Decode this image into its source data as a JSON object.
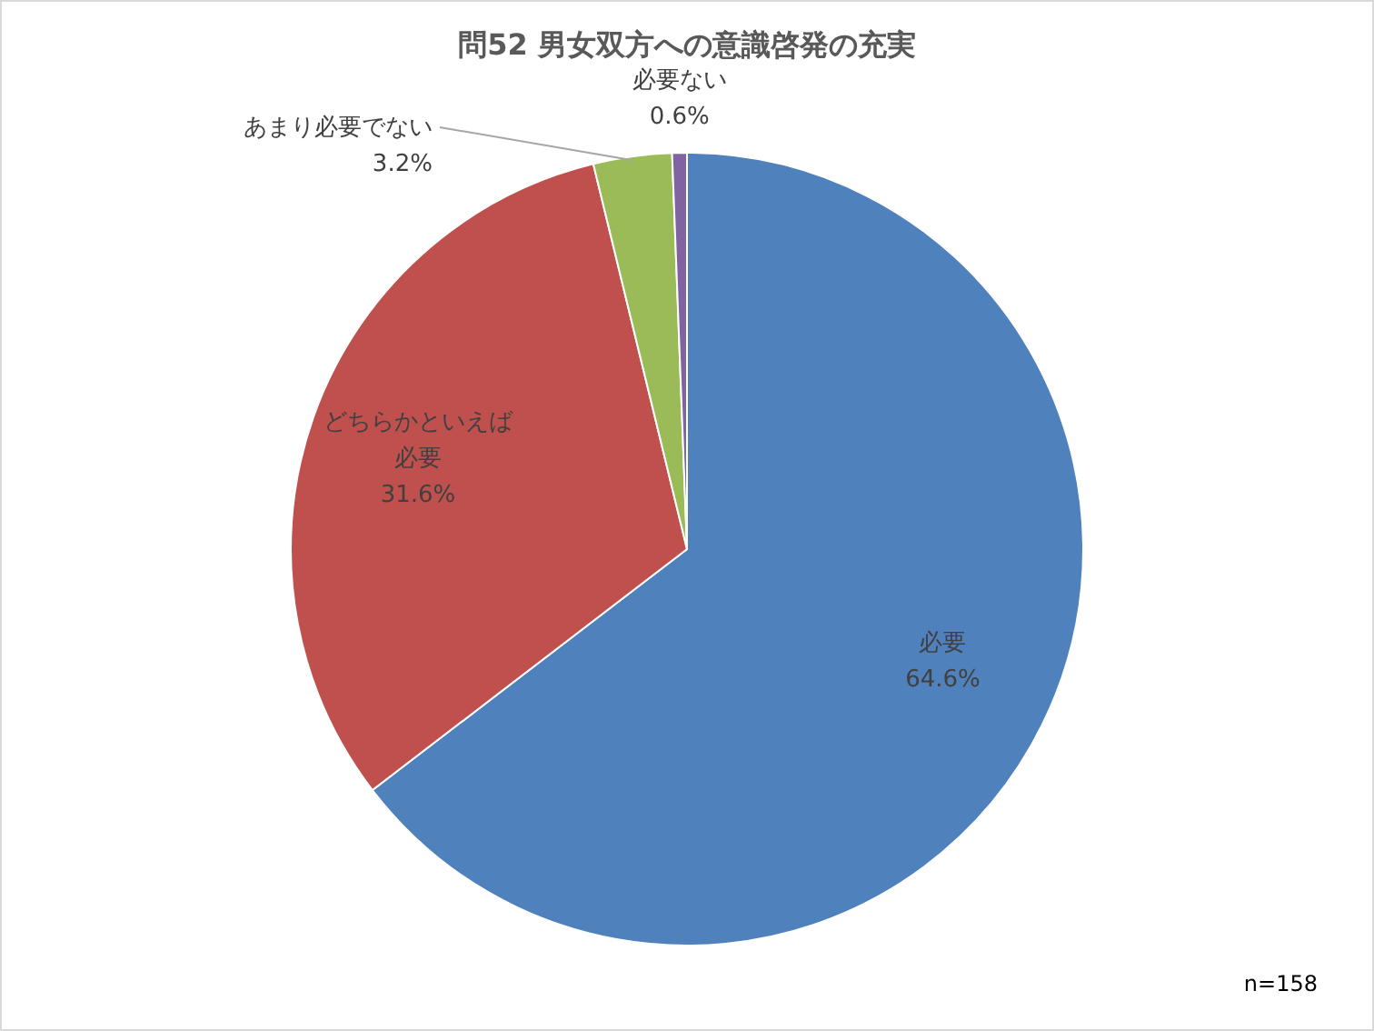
{
  "chart_data": {
    "type": "pie",
    "title": "問52  男女双方への意識啓発の充実",
    "categories": [
      "必要",
      "どちらかといえば必要",
      "あまり必要でない",
      "必要ない"
    ],
    "values": [
      64.6,
      31.6,
      3.2,
      0.6
    ],
    "colors": [
      "#4f81bd",
      "#c0504d",
      "#9bbb59",
      "#8064a2"
    ],
    "value_labels": [
      "64.6%",
      "31.6%",
      "3.2%",
      "0.6%"
    ],
    "annotations": [
      "n=158"
    ]
  }
}
